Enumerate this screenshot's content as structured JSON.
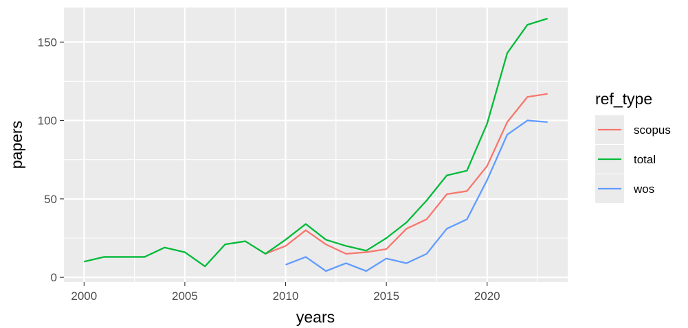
{
  "chart_data": {
    "type": "line",
    "xlabel": "years",
    "ylabel": "papers",
    "xlim": [
      1999.0,
      2024.0
    ],
    "ylim": [
      -3,
      172
    ],
    "x_ticks": [
      2000,
      2005,
      2010,
      2015,
      2020
    ],
    "x_tick_labels": [
      "2000",
      "2005",
      "2010",
      "2015",
      "2020"
    ],
    "y_ticks": [
      0,
      50,
      100,
      150
    ],
    "y_tick_labels": [
      "0",
      "50",
      "100",
      "150"
    ],
    "grid": true,
    "legend": {
      "title": "ref_type",
      "placement": "right"
    },
    "series": [
      {
        "name": "scopus",
        "color": "#F8766D",
        "x": [
          2009,
          2010,
          2011,
          2012,
          2013,
          2014,
          2015,
          2016,
          2017,
          2018,
          2019,
          2020,
          2021,
          2022,
          2023
        ],
        "y": [
          15,
          20,
          30,
          21,
          15,
          16,
          18,
          31,
          37,
          53,
          55,
          71,
          99,
          115,
          117
        ]
      },
      {
        "name": "total",
        "color": "#00BA38",
        "x": [
          2000,
          2001,
          2002,
          2003,
          2004,
          2005,
          2006,
          2007,
          2008,
          2009,
          2010,
          2011,
          2012,
          2013,
          2014,
          2015,
          2016,
          2017,
          2018,
          2019,
          2020,
          2021,
          2022,
          2023
        ],
        "y": [
          10,
          13,
          13,
          13,
          19,
          16,
          7,
          21,
          23,
          15,
          24,
          34,
          24,
          20,
          17,
          25,
          35,
          49,
          65,
          68,
          98,
          143,
          161,
          165
        ]
      },
      {
        "name": "wos",
        "color": "#619CFF",
        "x": [
          2010,
          2011,
          2012,
          2013,
          2014,
          2015,
          2016,
          2017,
          2018,
          2019,
          2020,
          2021,
          2022,
          2023
        ],
        "y": [
          8,
          13,
          4,
          9,
          4,
          12,
          9,
          15,
          31,
          37,
          62,
          91,
          100,
          99
        ]
      }
    ]
  }
}
